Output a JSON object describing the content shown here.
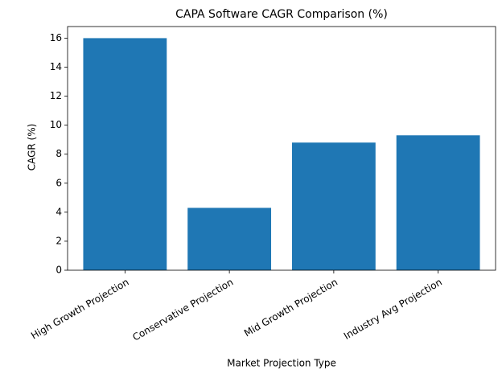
{
  "chart_data": {
    "type": "bar",
    "title": "CAPA Software CAGR Comparison (%)",
    "x_label": "Market Projection Type",
    "y_label": "CAGR (%)",
    "categories": [
      "High Growth Projection",
      "Conservative Projection",
      "Mid Growth Projection",
      "Industry Avg Projection"
    ],
    "values": [
      16,
      4.3,
      8.8,
      9.3
    ],
    "color": "#1f77b4",
    "ylim": [
      0,
      16.8
    ],
    "yticks": [
      0,
      2,
      4,
      6,
      8,
      10,
      12,
      14,
      16
    ],
    "grid": false
  }
}
